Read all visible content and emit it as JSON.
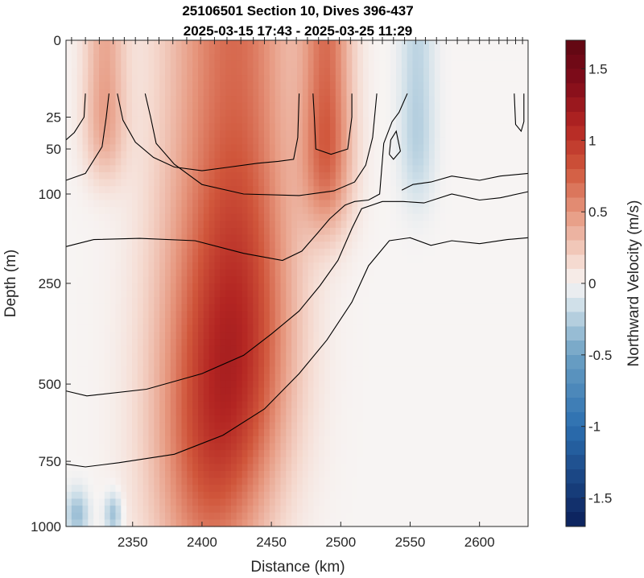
{
  "chart_data": {
    "type": "heatmap",
    "title": "25106501 Section 10, Dives 396-437",
    "subtitle": "2025-03-15 17:43 - 2025-03-25 11:29",
    "xlabel": "Distance (km)",
    "ylabel": "Depth (m)",
    "colorbar_label": "Northward Velocity (m/s)",
    "xlim": [
      2302,
      2635
    ],
    "ylim": [
      0,
      1000
    ],
    "y_scale": "square-root",
    "x_ticks": [
      2350,
      2400,
      2450,
      2500,
      2550,
      2600
    ],
    "y_ticks": [
      0,
      25,
      50,
      100,
      250,
      500,
      750,
      1000
    ],
    "clim": [
      -1.7,
      1.7
    ],
    "colorbar_ticks": [
      -1.5,
      -1,
      -0.5,
      0,
      0.5,
      1,
      1.5
    ],
    "colormap": {
      "negative": "#0b1f5a",
      "mid_negative": "#2b6fb0",
      "zero": "#f7f4f3",
      "mid_positive": "#d0563b",
      "positive": "#5e0712"
    },
    "grid": false,
    "dive_markers_km": [
      2306,
      2316,
      2326,
      2336,
      2344,
      2352,
      2361,
      2369,
      2379,
      2389,
      2399,
      2409,
      2418,
      2428,
      2437,
      2445,
      2453,
      2461,
      2468,
      2476,
      2484,
      2491,
      2499,
      2507,
      2515,
      2523,
      2530,
      2538,
      2546,
      2554,
      2561,
      2569,
      2576,
      2584,
      2592,
      2600,
      2607,
      2614,
      2620,
      2626,
      2631
    ],
    "velocity_cores": [
      {
        "x_center": 2405,
        "x_width": 40,
        "y_center": 600,
        "y_width": 700,
        "value": 0.85
      },
      {
        "x_center": 2435,
        "x_width": 35,
        "y_center": 300,
        "y_width": 500,
        "value": 0.6
      },
      {
        "x_center": 2490,
        "x_width": 18,
        "y_center": 40,
        "y_width": 110,
        "value": 0.75
      },
      {
        "x_center": 2330,
        "x_width": 15,
        "y_center": 20,
        "y_width": 60,
        "value": 0.45
      },
      {
        "x_center": 2555,
        "x_width": 12,
        "y_center": 30,
        "y_width": 80,
        "value": -0.25
      },
      {
        "x_center": 2310,
        "x_width": 8,
        "y_center": 950,
        "y_width": 90,
        "value": -0.35
      },
      {
        "x_center": 2336,
        "x_width": 6,
        "y_center": 950,
        "y_width": 80,
        "value": -0.35
      }
    ],
    "contours": [
      {
        "name": "",
        "points": [
          [
            2302,
            42
          ],
          [
            2308,
            36
          ],
          [
            2315,
            25
          ],
          [
            2316,
            12
          ]
        ]
      },
      {
        "name": "",
        "points": [
          [
            2302,
            83
          ],
          [
            2316,
            75
          ],
          [
            2328,
            48
          ],
          [
            2331,
            25
          ],
          [
            2333,
            12
          ]
        ]
      },
      {
        "name": "",
        "points": [
          [
            2339,
            12
          ],
          [
            2343,
            27
          ],
          [
            2352,
            44
          ],
          [
            2365,
            58
          ],
          [
            2380,
            68
          ],
          [
            2400,
            72
          ],
          [
            2420,
            68
          ],
          [
            2440,
            64
          ],
          [
            2455,
            62
          ],
          [
            2466,
            60
          ],
          [
            2469,
            40
          ],
          [
            2470,
            12
          ]
        ]
      },
      {
        "name": "",
        "points": [
          [
            2359,
            12
          ],
          [
            2363,
            25
          ],
          [
            2367,
            45
          ],
          [
            2380,
            65
          ],
          [
            2400,
            88
          ],
          [
            2430,
            100
          ],
          [
            2470,
            102
          ],
          [
            2495,
            96
          ],
          [
            2510,
            85
          ],
          [
            2518,
            66
          ],
          [
            2523,
            40
          ],
          [
            2526,
            12
          ]
        ]
      },
      {
        "name": "",
        "points": [
          [
            2480,
            12
          ],
          [
            2481,
            25
          ],
          [
            2482,
            50
          ],
          [
            2493,
            55
          ],
          [
            2505,
            50
          ],
          [
            2508,
            25
          ],
          [
            2508,
            12
          ]
        ]
      },
      {
        "name": "",
        "points": [
          [
            2302,
            180
          ],
          [
            2322,
            168
          ],
          [
            2355,
            166
          ],
          [
            2395,
            170
          ],
          [
            2430,
            192
          ],
          [
            2458,
            205
          ],
          [
            2472,
            188
          ],
          [
            2483,
            158
          ],
          [
            2492,
            135
          ],
          [
            2503,
            115
          ],
          [
            2510,
            110
          ],
          [
            2520,
            108
          ],
          [
            2528,
            100
          ],
          [
            2531,
            45
          ],
          [
            2537,
            28
          ],
          [
            2542,
            22
          ],
          [
            2548,
            12
          ]
        ]
      },
      {
        "name": "",
        "points": [
          [
            2535,
            55
          ],
          [
            2536,
            42
          ],
          [
            2540,
            35
          ],
          [
            2543,
            52
          ],
          [
            2538,
            60
          ],
          [
            2535,
            55
          ]
        ]
      },
      {
        "name": "",
        "points": [
          [
            2302,
            520
          ],
          [
            2317,
            535
          ],
          [
            2360,
            515
          ],
          [
            2400,
            470
          ],
          [
            2430,
            420
          ],
          [
            2450,
            365
          ],
          [
            2470,
            310
          ],
          [
            2485,
            255
          ],
          [
            2498,
            205
          ],
          [
            2508,
            150
          ],
          [
            2515,
            120
          ],
          [
            2530,
            110
          ],
          [
            2545,
            110
          ],
          [
            2560,
            112
          ],
          [
            2580,
            100
          ],
          [
            2600,
            108
          ],
          [
            2615,
            105
          ],
          [
            2635,
            97
          ]
        ]
      },
      {
        "name": "",
        "points": [
          [
            2302,
            760
          ],
          [
            2316,
            770
          ],
          [
            2340,
            755
          ],
          [
            2380,
            725
          ],
          [
            2415,
            660
          ],
          [
            2445,
            575
          ],
          [
            2470,
            470
          ],
          [
            2490,
            380
          ],
          [
            2508,
            290
          ],
          [
            2520,
            215
          ],
          [
            2535,
            170
          ],
          [
            2550,
            165
          ],
          [
            2565,
            178
          ],
          [
            2580,
            170
          ],
          [
            2600,
            175
          ],
          [
            2620,
            168
          ],
          [
            2635,
            165
          ]
        ]
      },
      {
        "name": "",
        "points": [
          [
            2544,
            95
          ],
          [
            2552,
            88
          ],
          [
            2565,
            85
          ],
          [
            2580,
            78
          ],
          [
            2600,
            83
          ],
          [
            2615,
            78
          ],
          [
            2635,
            75
          ]
        ]
      },
      {
        "name": "",
        "points": [
          [
            2625,
            12
          ],
          [
            2626,
            30
          ],
          [
            2630,
            35
          ],
          [
            2632,
            28
          ],
          [
            2632,
            12
          ]
        ]
      }
    ]
  }
}
